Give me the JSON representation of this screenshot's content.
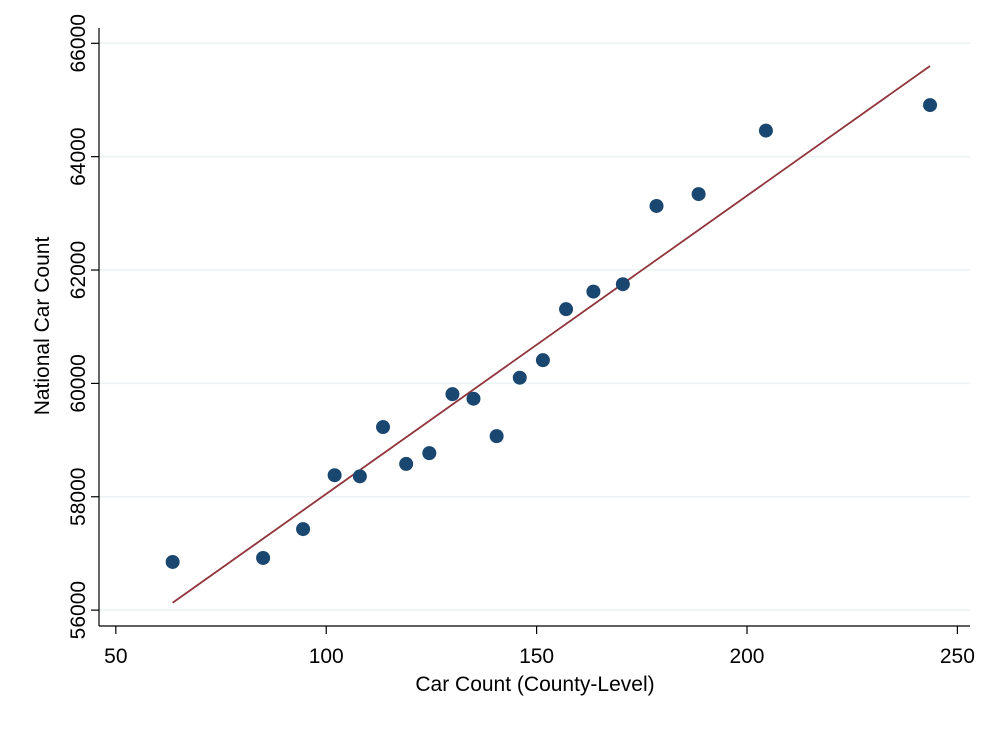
{
  "chart_data": {
    "type": "scatter",
    "title": "",
    "xlabel": "Car Count (County-Level)",
    "ylabel": "National Car Count",
    "xlim": [
      46,
      253
    ],
    "ylim": [
      55720,
      66270
    ],
    "xticks": [
      "50",
      "100",
      "150",
      "200",
      "250"
    ],
    "yticks": [
      "56000",
      "58000",
      "60000",
      "62000",
      "64000",
      "66000"
    ],
    "grid": "horizontal",
    "legend": "none",
    "points": [
      {
        "x": 63.5,
        "y": 56850
      },
      {
        "x": 85,
        "y": 56920
      },
      {
        "x": 94.5,
        "y": 57430
      },
      {
        "x": 102,
        "y": 58380
      },
      {
        "x": 108,
        "y": 58360
      },
      {
        "x": 113.5,
        "y": 59230
      },
      {
        "x": 119,
        "y": 58580
      },
      {
        "x": 124.5,
        "y": 58770
      },
      {
        "x": 130,
        "y": 59810
      },
      {
        "x": 135,
        "y": 59730
      },
      {
        "x": 140.5,
        "y": 59070
      },
      {
        "x": 146,
        "y": 60100
      },
      {
        "x": 151.5,
        "y": 60410
      },
      {
        "x": 157,
        "y": 61310
      },
      {
        "x": 163.5,
        "y": 61620
      },
      {
        "x": 170.5,
        "y": 61750
      },
      {
        "x": 178.5,
        "y": 63130
      },
      {
        "x": 188.5,
        "y": 63340
      },
      {
        "x": 204.5,
        "y": 64460
      },
      {
        "x": 243.5,
        "y": 64910
      }
    ],
    "fit_line": {
      "x": [
        63.5,
        243.5
      ],
      "y": [
        56130,
        65600
      ]
    },
    "colors": {
      "points": "#1a476f",
      "fit_line": "#90353b",
      "grid": "#eaf2f3",
      "axis": "#000000"
    }
  }
}
